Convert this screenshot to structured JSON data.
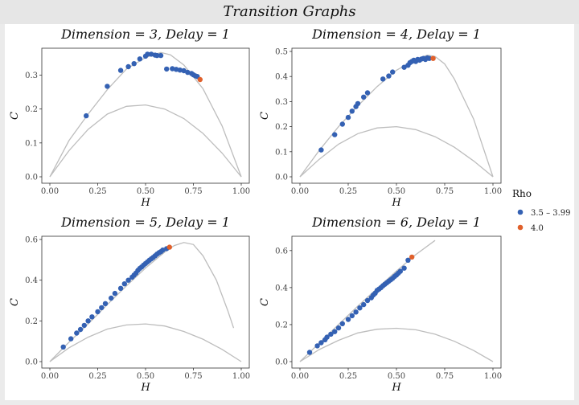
{
  "header": {
    "title": "Transition Graphs"
  },
  "colors": {
    "series_a": "#3461b3",
    "series_b": "#e0602b",
    "bound_curve": "#bdbdbd",
    "panel_background": "#ffffff",
    "figure_background": "#ebebeb",
    "title_bar": "#e6e6e6"
  },
  "chart_data": [
    {
      "type": "scatter",
      "title": "Dimension = 3, Delay = 1",
      "xlabel": "H",
      "ylabel": "C",
      "xlim": [
        0,
        1
      ],
      "ylim": [
        0,
        0.37
      ],
      "xticks": [
        "0.00",
        "0.25",
        "0.50",
        "0.75",
        "1.00"
      ],
      "yticks": [
        "0.0",
        "0.1",
        "0.2",
        "0.3"
      ],
      "ytick_values": [
        0,
        0.1,
        0.2,
        0.3
      ],
      "upper_curve": [
        [
          0,
          0
        ],
        [
          0.1,
          0.107
        ],
        [
          0.2,
          0.185
        ],
        [
          0.3,
          0.257
        ],
        [
          0.4,
          0.318
        ],
        [
          0.5,
          0.352
        ],
        [
          0.58,
          0.367
        ],
        [
          0.63,
          0.36
        ],
        [
          0.7,
          0.33
        ],
        [
          0.8,
          0.26
        ],
        [
          0.9,
          0.15
        ],
        [
          1,
          0
        ]
      ],
      "lower_curve": [
        [
          0,
          0
        ],
        [
          0.1,
          0.077
        ],
        [
          0.2,
          0.14
        ],
        [
          0.3,
          0.185
        ],
        [
          0.4,
          0.208
        ],
        [
          0.5,
          0.212
        ],
        [
          0.6,
          0.2
        ],
        [
          0.7,
          0.172
        ],
        [
          0.8,
          0.128
        ],
        [
          0.9,
          0.07
        ],
        [
          1,
          0
        ]
      ],
      "series": [
        {
          "name": "3.5 – 3.99",
          "points": [
            [
              0.19,
              0.18
            ],
            [
              0.3,
              0.267
            ],
            [
              0.37,
              0.314
            ],
            [
              0.41,
              0.325
            ],
            [
              0.44,
              0.334
            ],
            [
              0.47,
              0.348
            ],
            [
              0.5,
              0.356
            ],
            [
              0.51,
              0.362
            ],
            [
              0.53,
              0.362
            ],
            [
              0.55,
              0.359
            ],
            [
              0.56,
              0.358
            ],
            [
              0.58,
              0.358
            ],
            [
              0.61,
              0.318
            ],
            [
              0.64,
              0.319
            ],
            [
              0.66,
              0.317
            ],
            [
              0.68,
              0.315
            ],
            [
              0.7,
              0.313
            ],
            [
              0.72,
              0.308
            ],
            [
              0.74,
              0.305
            ],
            [
              0.75,
              0.301
            ],
            [
              0.76,
              0.298
            ],
            [
              0.77,
              0.296
            ]
          ]
        },
        {
          "name": "4.0",
          "points": [
            [
              0.785,
              0.287
            ]
          ]
        }
      ]
    },
    {
      "type": "scatter",
      "title": "Dimension = 4, Delay = 1",
      "xlabel": "H",
      "ylabel": "C",
      "xlim": [
        0,
        1
      ],
      "ylim": [
        0,
        0.5
      ],
      "xticks": [
        "0.00",
        "0.25",
        "0.50",
        "0.75",
        "1.00"
      ],
      "yticks": [
        "0.0",
        "0.1",
        "0.2",
        "0.3",
        "0.4",
        "0.5"
      ],
      "ytick_values": [
        0,
        0.1,
        0.2,
        0.3,
        0.4,
        0.5
      ],
      "upper_curve": [
        [
          0,
          0
        ],
        [
          0.1,
          0.105
        ],
        [
          0.2,
          0.2
        ],
        [
          0.3,
          0.283
        ],
        [
          0.4,
          0.36
        ],
        [
          0.5,
          0.425
        ],
        [
          0.6,
          0.468
        ],
        [
          0.66,
          0.485
        ],
        [
          0.7,
          0.48
        ],
        [
          0.75,
          0.45
        ],
        [
          0.8,
          0.39
        ],
        [
          0.9,
          0.23
        ],
        [
          1,
          0
        ]
      ],
      "lower_curve": [
        [
          0,
          0
        ],
        [
          0.1,
          0.07
        ],
        [
          0.2,
          0.13
        ],
        [
          0.3,
          0.172
        ],
        [
          0.4,
          0.195
        ],
        [
          0.5,
          0.2
        ],
        [
          0.6,
          0.188
        ],
        [
          0.7,
          0.16
        ],
        [
          0.8,
          0.118
        ],
        [
          0.9,
          0.063
        ],
        [
          1,
          0
        ]
      ],
      "series": [
        {
          "name": "3.5 – 3.99",
          "points": [
            [
              0.11,
              0.107
            ],
            [
              0.18,
              0.168
            ],
            [
              0.22,
              0.21
            ],
            [
              0.25,
              0.237
            ],
            [
              0.27,
              0.262
            ],
            [
              0.29,
              0.28
            ],
            [
              0.3,
              0.292
            ],
            [
              0.33,
              0.318
            ],
            [
              0.35,
              0.335
            ],
            [
              0.43,
              0.39
            ],
            [
              0.46,
              0.402
            ],
            [
              0.48,
              0.418
            ],
            [
              0.54,
              0.437
            ],
            [
              0.56,
              0.445
            ],
            [
              0.57,
              0.455
            ],
            [
              0.58,
              0.46
            ],
            [
              0.59,
              0.465
            ],
            [
              0.6,
              0.46
            ],
            [
              0.61,
              0.468
            ],
            [
              0.62,
              0.465
            ],
            [
              0.63,
              0.47
            ],
            [
              0.64,
              0.472
            ],
            [
              0.65,
              0.468
            ],
            [
              0.66,
              0.474
            ],
            [
              0.67,
              0.472
            ]
          ]
        },
        {
          "name": "4.0",
          "points": [
            [
              0.69,
              0.472
            ]
          ]
        }
      ]
    },
    {
      "type": "scatter",
      "title": "Dimension = 5, Delay = 1",
      "xlabel": "H",
      "ylabel": "C",
      "xlim": [
        0,
        1
      ],
      "ylim": [
        0,
        0.6
      ],
      "xticks": [
        "0.00",
        "0.25",
        "0.50",
        "0.75",
        "1.00"
      ],
      "yticks": [
        "0.0",
        "0.2",
        "0.4",
        "0.6"
      ],
      "ytick_values": [
        0,
        0.2,
        0.4,
        0.6
      ],
      "upper_curve": [
        [
          0,
          0
        ],
        [
          0.1,
          0.095
        ],
        [
          0.2,
          0.185
        ],
        [
          0.3,
          0.28
        ],
        [
          0.4,
          0.372
        ],
        [
          0.5,
          0.46
        ],
        [
          0.6,
          0.538
        ],
        [
          0.65,
          0.57
        ],
        [
          0.7,
          0.585
        ],
        [
          0.75,
          0.575
        ],
        [
          0.8,
          0.52
        ],
        [
          0.87,
          0.4
        ],
        [
          0.93,
          0.25
        ],
        [
          0.96,
          0.165
        ]
      ],
      "lower_curve": [
        [
          0,
          0
        ],
        [
          0.1,
          0.068
        ],
        [
          0.2,
          0.12
        ],
        [
          0.3,
          0.16
        ],
        [
          0.4,
          0.18
        ],
        [
          0.5,
          0.185
        ],
        [
          0.6,
          0.175
        ],
        [
          0.7,
          0.148
        ],
        [
          0.8,
          0.11
        ],
        [
          0.9,
          0.06
        ],
        [
          1,
          0
        ]
      ],
      "series": [
        {
          "name": "3.5 – 3.99",
          "points": [
            [
              0.07,
              0.072
            ],
            [
              0.11,
              0.112
            ],
            [
              0.14,
              0.14
            ],
            [
              0.16,
              0.158
            ],
            [
              0.18,
              0.178
            ],
            [
              0.2,
              0.2
            ],
            [
              0.22,
              0.22
            ],
            [
              0.25,
              0.245
            ],
            [
              0.27,
              0.265
            ],
            [
              0.29,
              0.285
            ],
            [
              0.32,
              0.312
            ],
            [
              0.34,
              0.335
            ],
            [
              0.37,
              0.36
            ],
            [
              0.39,
              0.382
            ],
            [
              0.41,
              0.4
            ],
            [
              0.43,
              0.415
            ],
            [
              0.44,
              0.425
            ],
            [
              0.45,
              0.435
            ],
            [
              0.46,
              0.448
            ],
            [
              0.47,
              0.458
            ],
            [
              0.48,
              0.465
            ],
            [
              0.49,
              0.474
            ],
            [
              0.5,
              0.482
            ],
            [
              0.51,
              0.49
            ],
            [
              0.52,
              0.498
            ],
            [
              0.53,
              0.505
            ],
            [
              0.54,
              0.512
            ],
            [
              0.55,
              0.52
            ],
            [
              0.56,
              0.528
            ],
            [
              0.57,
              0.535
            ],
            [
              0.58,
              0.54
            ],
            [
              0.59,
              0.548
            ],
            [
              0.61,
              0.555
            ]
          ]
        },
        {
          "name": "4.0",
          "points": [
            [
              0.625,
              0.562
            ]
          ]
        }
      ]
    },
    {
      "type": "scatter",
      "title": "Dimension = 6, Delay = 1",
      "xlabel": "H",
      "ylabel": "C",
      "xlim": [
        0,
        1
      ],
      "ylim": [
        0,
        0.66
      ],
      "xticks": [
        "0.00",
        "0.25",
        "0.50",
        "0.75",
        "1.00"
      ],
      "yticks": [
        "0.0",
        "0.2",
        "0.4",
        "0.6"
      ],
      "ytick_values": [
        0,
        0.2,
        0.4,
        0.6
      ],
      "upper_curve": [
        [
          0,
          0
        ],
        [
          0.1,
          0.1
        ],
        [
          0.2,
          0.2
        ],
        [
          0.3,
          0.3
        ],
        [
          0.4,
          0.395
        ],
        [
          0.5,
          0.49
        ],
        [
          0.6,
          0.578
        ],
        [
          0.7,
          0.655
        ]
      ],
      "lower_curve": [
        [
          0,
          0
        ],
        [
          0.1,
          0.065
        ],
        [
          0.2,
          0.115
        ],
        [
          0.3,
          0.155
        ],
        [
          0.4,
          0.175
        ],
        [
          0.5,
          0.18
        ],
        [
          0.6,
          0.172
        ],
        [
          0.7,
          0.148
        ],
        [
          0.8,
          0.11
        ],
        [
          0.9,
          0.06
        ],
        [
          1,
          0
        ]
      ],
      "series": [
        {
          "name": "3.5 – 3.99",
          "points": [
            [
              0.05,
              0.05
            ],
            [
              0.09,
              0.085
            ],
            [
              0.11,
              0.102
            ],
            [
              0.13,
              0.118
            ],
            [
              0.14,
              0.132
            ],
            [
              0.16,
              0.148
            ],
            [
              0.18,
              0.162
            ],
            [
              0.2,
              0.182
            ],
            [
              0.22,
              0.205
            ],
            [
              0.25,
              0.228
            ],
            [
              0.27,
              0.248
            ],
            [
              0.29,
              0.268
            ],
            [
              0.31,
              0.29
            ],
            [
              0.33,
              0.308
            ],
            [
              0.35,
              0.33
            ],
            [
              0.37,
              0.345
            ],
            [
              0.38,
              0.36
            ],
            [
              0.39,
              0.37
            ],
            [
              0.4,
              0.385
            ],
            [
              0.41,
              0.392
            ],
            [
              0.42,
              0.4
            ],
            [
              0.43,
              0.41
            ],
            [
              0.44,
              0.418
            ],
            [
              0.45,
              0.426
            ],
            [
              0.46,
              0.434
            ],
            [
              0.47,
              0.442
            ],
            [
              0.48,
              0.45
            ],
            [
              0.49,
              0.46
            ],
            [
              0.5,
              0.468
            ],
            [
              0.51,
              0.478
            ],
            [
              0.52,
              0.488
            ],
            [
              0.54,
              0.505
            ],
            [
              0.56,
              0.548
            ]
          ]
        },
        {
          "name": "4.0",
          "points": [
            [
              0.58,
              0.565
            ]
          ]
        }
      ]
    }
  ],
  "legend": {
    "title": "Rho",
    "items": [
      {
        "label": "3.5 – 3.99",
        "color": "#3461b3"
      },
      {
        "label": "4.0",
        "color": "#e0602b"
      }
    ]
  }
}
